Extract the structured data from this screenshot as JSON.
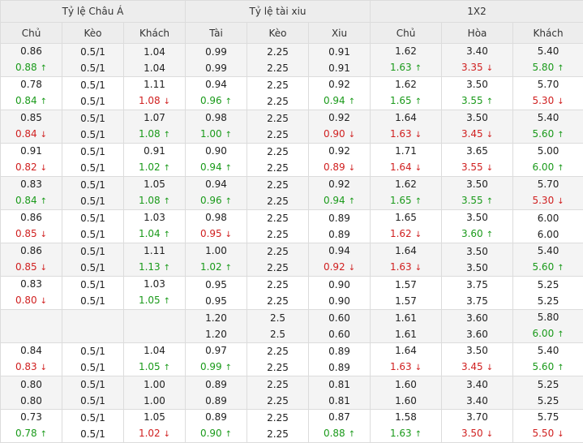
{
  "groups": [
    "Tỷ lệ Châu Á",
    "Tỷ lệ tài xiu",
    "1X2"
  ],
  "columns": [
    "Chủ",
    "Kèo",
    "Khách",
    "Tài",
    "Kèo",
    "Xiu",
    "Chủ",
    "Hòa",
    "Khách"
  ],
  "rows": [
    [
      [
        "0.86",
        ""
      ],
      [
        "0.5/1",
        ""
      ],
      [
        "1.04",
        ""
      ],
      [
        "0.99",
        ""
      ],
      [
        "2.25",
        ""
      ],
      [
        "0.91",
        ""
      ],
      [
        "1.62",
        ""
      ],
      [
        "3.40",
        ""
      ],
      [
        "5.40",
        ""
      ]
    ],
    [
      [
        "0.88",
        "up"
      ],
      [
        "0.5/1",
        ""
      ],
      [
        "1.04",
        ""
      ],
      [
        "0.99",
        ""
      ],
      [
        "2.25",
        ""
      ],
      [
        "0.91",
        ""
      ],
      [
        "1.63",
        "up"
      ],
      [
        "3.35",
        "down"
      ],
      [
        "5.80",
        "up"
      ]
    ],
    [
      [
        "0.78",
        ""
      ],
      [
        "0.5/1",
        ""
      ],
      [
        "1.11",
        ""
      ],
      [
        "0.94",
        ""
      ],
      [
        "2.25",
        ""
      ],
      [
        "0.92",
        ""
      ],
      [
        "1.62",
        ""
      ],
      [
        "3.50",
        ""
      ],
      [
        "5.70",
        ""
      ]
    ],
    [
      [
        "0.84",
        "up"
      ],
      [
        "0.5/1",
        ""
      ],
      [
        "1.08",
        "down"
      ],
      [
        "0.96",
        "up"
      ],
      [
        "2.25",
        ""
      ],
      [
        "0.94",
        "up"
      ],
      [
        "1.65",
        "up"
      ],
      [
        "3.55",
        "up"
      ],
      [
        "5.30",
        "down"
      ]
    ],
    [
      [
        "0.85",
        ""
      ],
      [
        "0.5/1",
        ""
      ],
      [
        "1.07",
        ""
      ],
      [
        "0.98",
        ""
      ],
      [
        "2.25",
        ""
      ],
      [
        "0.92",
        ""
      ],
      [
        "1.64",
        ""
      ],
      [
        "3.50",
        ""
      ],
      [
        "5.40",
        ""
      ]
    ],
    [
      [
        "0.84",
        "down"
      ],
      [
        "0.5/1",
        ""
      ],
      [
        "1.08",
        "up"
      ],
      [
        "1.00",
        "up"
      ],
      [
        "2.25",
        ""
      ],
      [
        "0.90",
        "down"
      ],
      [
        "1.63",
        "down"
      ],
      [
        "3.45",
        "down"
      ],
      [
        "5.60",
        "up"
      ]
    ],
    [
      [
        "0.91",
        ""
      ],
      [
        "0.5/1",
        ""
      ],
      [
        "0.91",
        ""
      ],
      [
        "0.90",
        ""
      ],
      [
        "2.25",
        ""
      ],
      [
        "0.92",
        ""
      ],
      [
        "1.71",
        ""
      ],
      [
        "3.65",
        ""
      ],
      [
        "5.00",
        ""
      ]
    ],
    [
      [
        "0.82",
        "down"
      ],
      [
        "0.5/1",
        ""
      ],
      [
        "1.02",
        "up"
      ],
      [
        "0.94",
        "up"
      ],
      [
        "2.25",
        ""
      ],
      [
        "0.89",
        "down"
      ],
      [
        "1.64",
        "down"
      ],
      [
        "3.55",
        "down"
      ],
      [
        "6.00",
        "up"
      ]
    ],
    [
      [
        "0.83",
        ""
      ],
      [
        "0.5/1",
        ""
      ],
      [
        "1.05",
        ""
      ],
      [
        "0.94",
        ""
      ],
      [
        "2.25",
        ""
      ],
      [
        "0.92",
        ""
      ],
      [
        "1.62",
        ""
      ],
      [
        "3.50",
        ""
      ],
      [
        "5.70",
        ""
      ]
    ],
    [
      [
        "0.84",
        "up"
      ],
      [
        "0.5/1",
        ""
      ],
      [
        "1.08",
        "up"
      ],
      [
        "0.96",
        "up"
      ],
      [
        "2.25",
        ""
      ],
      [
        "0.94",
        "up"
      ],
      [
        "1.65",
        "up"
      ],
      [
        "3.55",
        "up"
      ],
      [
        "5.30",
        "down"
      ]
    ],
    [
      [
        "0.86",
        ""
      ],
      [
        "0.5/1",
        ""
      ],
      [
        "1.03",
        ""
      ],
      [
        "0.98",
        ""
      ],
      [
        "2.25",
        ""
      ],
      [
        "0.89",
        ""
      ],
      [
        "1.65",
        ""
      ],
      [
        "3.50",
        ""
      ],
      [
        "6.00",
        ""
      ]
    ],
    [
      [
        "0.85",
        "down"
      ],
      [
        "0.5/1",
        ""
      ],
      [
        "1.04",
        "up"
      ],
      [
        "0.95",
        "down"
      ],
      [
        "2.25",
        ""
      ],
      [
        "0.89",
        ""
      ],
      [
        "1.62",
        "down"
      ],
      [
        "3.60",
        "up"
      ],
      [
        "6.00",
        ""
      ]
    ],
    [
      [
        "0.86",
        ""
      ],
      [
        "0.5/1",
        ""
      ],
      [
        "1.11",
        ""
      ],
      [
        "1.00",
        ""
      ],
      [
        "2.25",
        ""
      ],
      [
        "0.94",
        ""
      ],
      [
        "1.64",
        ""
      ],
      [
        "3.50",
        ""
      ],
      [
        "5.40",
        ""
      ]
    ],
    [
      [
        "0.85",
        "down"
      ],
      [
        "0.5/1",
        ""
      ],
      [
        "1.13",
        "up"
      ],
      [
        "1.02",
        "up"
      ],
      [
        "2.25",
        ""
      ],
      [
        "0.92",
        "down"
      ],
      [
        "1.63",
        "down"
      ],
      [
        "3.50",
        ""
      ],
      [
        "5.60",
        "up"
      ]
    ],
    [
      [
        "0.83",
        ""
      ],
      [
        "0.5/1",
        ""
      ],
      [
        "1.03",
        ""
      ],
      [
        "0.95",
        ""
      ],
      [
        "2.25",
        ""
      ],
      [
        "0.90",
        ""
      ],
      [
        "1.57",
        ""
      ],
      [
        "3.75",
        ""
      ],
      [
        "5.25",
        ""
      ]
    ],
    [
      [
        "0.80",
        "down"
      ],
      [
        "0.5/1",
        ""
      ],
      [
        "1.05",
        "up"
      ],
      [
        "0.95",
        ""
      ],
      [
        "2.25",
        ""
      ],
      [
        "0.90",
        ""
      ],
      [
        "1.57",
        ""
      ],
      [
        "3.75",
        ""
      ],
      [
        "5.25",
        ""
      ]
    ],
    [
      [
        "",
        ""
      ],
      [
        "",
        ""
      ],
      [
        "",
        ""
      ],
      [
        "1.20",
        ""
      ],
      [
        "2.5",
        ""
      ],
      [
        "0.60",
        ""
      ],
      [
        "1.61",
        ""
      ],
      [
        "3.60",
        ""
      ],
      [
        "5.80",
        ""
      ]
    ],
    [
      [
        "",
        ""
      ],
      [
        "",
        ""
      ],
      [
        "",
        ""
      ],
      [
        "1.20",
        ""
      ],
      [
        "2.5",
        ""
      ],
      [
        "0.60",
        ""
      ],
      [
        "1.61",
        ""
      ],
      [
        "3.60",
        ""
      ],
      [
        "6.00",
        "up"
      ]
    ],
    [
      [
        "0.84",
        ""
      ],
      [
        "0.5/1",
        ""
      ],
      [
        "1.04",
        ""
      ],
      [
        "0.97",
        ""
      ],
      [
        "2.25",
        ""
      ],
      [
        "0.89",
        ""
      ],
      [
        "1.64",
        ""
      ],
      [
        "3.50",
        ""
      ],
      [
        "5.40",
        ""
      ]
    ],
    [
      [
        "0.83",
        "down"
      ],
      [
        "0.5/1",
        ""
      ],
      [
        "1.05",
        "up"
      ],
      [
        "0.99",
        "up"
      ],
      [
        "2.25",
        ""
      ],
      [
        "0.89",
        ""
      ],
      [
        "1.63",
        "down"
      ],
      [
        "3.45",
        "down"
      ],
      [
        "5.60",
        "up"
      ]
    ],
    [
      [
        "0.80",
        ""
      ],
      [
        "0.5/1",
        ""
      ],
      [
        "1.00",
        ""
      ],
      [
        "0.89",
        ""
      ],
      [
        "2.25",
        ""
      ],
      [
        "0.81",
        ""
      ],
      [
        "1.60",
        ""
      ],
      [
        "3.40",
        ""
      ],
      [
        "5.25",
        ""
      ]
    ],
    [
      [
        "0.80",
        ""
      ],
      [
        "0.5/1",
        ""
      ],
      [
        "1.00",
        ""
      ],
      [
        "0.89",
        ""
      ],
      [
        "2.25",
        ""
      ],
      [
        "0.81",
        ""
      ],
      [
        "1.60",
        ""
      ],
      [
        "3.40",
        ""
      ],
      [
        "5.25",
        ""
      ]
    ],
    [
      [
        "0.73",
        ""
      ],
      [
        "0.5/1",
        ""
      ],
      [
        "1.05",
        ""
      ],
      [
        "0.89",
        ""
      ],
      [
        "2.25",
        ""
      ],
      [
        "0.87",
        ""
      ],
      [
        "1.58",
        ""
      ],
      [
        "3.70",
        ""
      ],
      [
        "5.75",
        ""
      ]
    ],
    [
      [
        "0.78",
        "up"
      ],
      [
        "0.5/1",
        ""
      ],
      [
        "1.02",
        "down"
      ],
      [
        "0.90",
        "up"
      ],
      [
        "2.25",
        ""
      ],
      [
        "0.88",
        "up"
      ],
      [
        "1.63",
        "up"
      ],
      [
        "3.50",
        "down"
      ],
      [
        "5.50",
        "down"
      ]
    ]
  ],
  "icons": {
    "up": "arrow-up-icon",
    "down": "arrow-down-icon"
  },
  "colors": {
    "up": "#1a9a1a",
    "down": "#d01f1f",
    "header_bg": "#ededed",
    "odd_row_bg": "#f4f4f4"
  }
}
